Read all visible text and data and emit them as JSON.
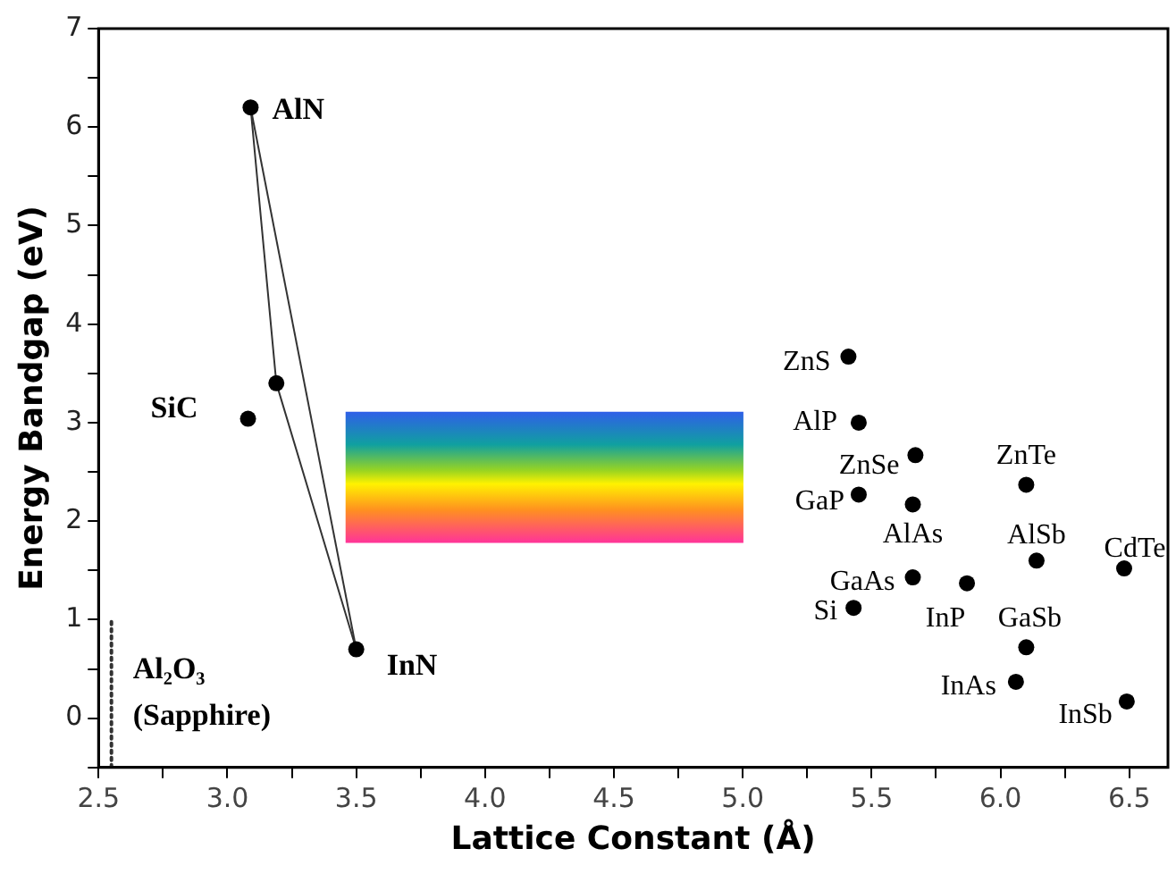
{
  "chart_data": {
    "type": "scatter",
    "xlabel": "Lattice Constant (Å)",
    "ylabel": "Energy Bandgap (eV)",
    "xlim": [
      2.5,
      6.65
    ],
    "ylim": [
      -0.5,
      7
    ],
    "xticks": [
      {
        "value": 2.5,
        "label": "2.5"
      },
      {
        "value": 2.75,
        "label": null
      },
      {
        "value": 3,
        "label": "3.0"
      },
      {
        "value": 3.25,
        "label": null
      },
      {
        "value": 3.5,
        "label": "3.5"
      },
      {
        "value": 3.75,
        "label": null
      },
      {
        "value": 4,
        "label": "4.0"
      },
      {
        "value": 4.25,
        "label": null
      },
      {
        "value": 4.5,
        "label": "4.5"
      },
      {
        "value": 4.75,
        "label": null
      },
      {
        "value": 5,
        "label": "5.0"
      },
      {
        "value": 5.25,
        "label": null
      },
      {
        "value": 5.5,
        "label": "5.5"
      },
      {
        "value": 5.75,
        "label": null
      },
      {
        "value": 6,
        "label": "6.0"
      },
      {
        "value": 6.25,
        "label": null
      },
      {
        "value": 6.5,
        "label": "6.5"
      }
    ],
    "yticks": [
      {
        "value": -0.5,
        "label": null
      },
      0,
      {
        "value": 0.5,
        "label": null
      },
      1,
      {
        "value": 1.5,
        "label": null
      },
      2,
      {
        "value": 2.5,
        "label": null
      },
      3,
      {
        "value": 3.5,
        "label": null
      },
      4,
      {
        "value": 4.5,
        "label": null
      },
      5,
      {
        "value": 5.5,
        "label": null
      },
      6,
      {
        "value": 6.5,
        "label": null
      },
      7
    ],
    "grid": false,
    "legend": false,
    "series": [
      {
        "type": "scatter",
        "marker": "circle",
        "color": "#000000",
        "x": [
          3.09,
          3.19,
          3.08,
          3.5,
          5.41,
          5.45,
          5.67,
          5.45,
          5.66,
          6.1,
          6.14,
          6.48,
          5.66,
          5.87,
          5.43,
          6.1,
          6.06,
          6.49
        ],
        "values": [
          6.2,
          3.4,
          3.04,
          0.7,
          3.67,
          3.0,
          2.67,
          2.27,
          2.17,
          2.37,
          1.6,
          1.52,
          1.43,
          1.37,
          1.12,
          0.72,
          0.37,
          0.17
        ]
      },
      {
        "type": "line",
        "marker": "none",
        "line_style": "solid",
        "color": "#333333",
        "x": [
          3.09,
          3.5
        ],
        "values": [
          6.2,
          0.7
        ]
      },
      {
        "type": "line",
        "marker": "none",
        "line_style": "solid",
        "color": "#333333",
        "x": [
          3.09,
          3.19,
          3.5
        ],
        "values": [
          6.2,
          3.4,
          0.7
        ]
      },
      {
        "type": "line",
        "marker": "none",
        "line_style": "dotted",
        "name": "Al₂O₃ (Sapphire)",
        "color": "#333333",
        "x": [
          2.55,
          2.55
        ],
        "values": [
          -0.5,
          1.0
        ]
      }
    ],
    "bands": [
      {
        "axis": "y",
        "from": 1.78,
        "to": 3.11
      }
    ],
    "annotations": [
      {
        "text": "AlN",
        "x": 3.09,
        "y": 6.2
      },
      {
        "text": "SiC",
        "x": 3.08,
        "y": 3.04
      },
      {
        "text": "InN",
        "x": 3.5,
        "y": 0.7
      },
      {
        "text": "ZnS",
        "x": 5.41,
        "y": 3.67
      },
      {
        "text": "AlP",
        "x": 5.45,
        "y": 3.0
      },
      {
        "text": "ZnSe",
        "x": 5.67,
        "y": 2.67
      },
      {
        "text": "GaP",
        "x": 5.45,
        "y": 2.27
      },
      {
        "text": "AlAs",
        "x": 5.66,
        "y": 2.17
      },
      {
        "text": "ZnTe",
        "x": 6.1,
        "y": 2.37
      },
      {
        "text": "AlSb",
        "x": 6.14,
        "y": 1.6
      },
      {
        "text": "CdTe",
        "x": 6.48,
        "y": 1.52
      },
      {
        "text": "GaAs",
        "x": 5.66,
        "y": 1.43
      },
      {
        "text": "InP",
        "x": 5.87,
        "y": 1.37
      },
      {
        "text": "Si",
        "x": 5.43,
        "y": 1.12
      },
      {
        "text": "GaSb",
        "x": 6.1,
        "y": 0.72
      },
      {
        "text": "InAs",
        "x": 6.06,
        "y": 0.37
      },
      {
        "text": "InSb",
        "x": 6.49,
        "y": 0.17
      }
    ]
  }
}
